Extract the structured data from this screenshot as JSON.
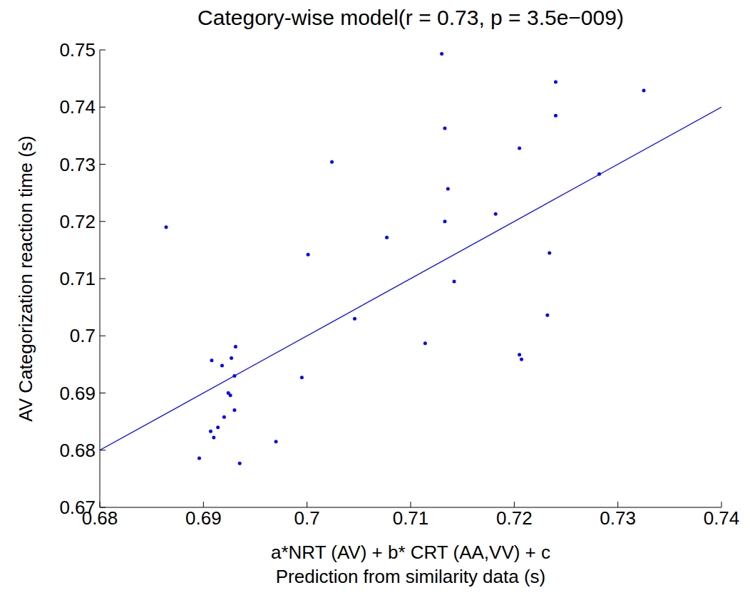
{
  "chart_data": {
    "type": "scatter",
    "title": "Category-wise model(r = 0.73, p = 3.5e−009)",
    "xlabel": [
      "a*NRT (AV) + b* CRT (AA,VV) + c",
      "Prediction from similarity data (s)"
    ],
    "ylabel": "AV Categorization reaction time (s)",
    "xlim": [
      0.68,
      0.74
    ],
    "ylim": [
      0.67,
      0.75
    ],
    "xticks": [
      0.68,
      0.69,
      0.7,
      0.71,
      0.72,
      0.73,
      0.74
    ],
    "yticks": [
      0.67,
      0.68,
      0.69,
      0.7,
      0.71,
      0.72,
      0.73,
      0.74,
      0.75
    ],
    "grid": false,
    "series": [
      {
        "type": "scatter",
        "color": "#0000ff",
        "marker": "dot",
        "x": [
          0.6864,
          0.7024,
          0.7001,
          0.6995,
          0.697,
          0.7325,
          0.7282,
          0.724,
          0.724,
          0.7205,
          0.7234,
          0.7232,
          0.7205,
          0.7207,
          0.713,
          0.7133,
          0.7136,
          0.7133,
          0.7142,
          0.7114,
          0.7077,
          0.7046,
          0.7182,
          0.6931,
          0.6927,
          0.693,
          0.6926,
          0.693,
          0.6924,
          0.692,
          0.6935,
          0.6918,
          0.6914,
          0.6907,
          0.6908,
          0.6896,
          0.691
        ],
        "values": [
          0.719,
          0.7304,
          0.7142,
          0.6927,
          0.6815,
          0.7429,
          0.7283,
          0.7444,
          0.7385,
          0.7328,
          0.7145,
          0.7036,
          0.6967,
          0.6959,
          0.7493,
          0.7363,
          0.7257,
          0.72,
          0.7095,
          0.6987,
          0.7172,
          0.703,
          0.7213,
          0.6981,
          0.6961,
          0.693,
          0.6896,
          0.687,
          0.69,
          0.6858,
          0.6777,
          0.6948,
          0.684,
          0.6833,
          0.6957,
          0.6786,
          0.6822
        ]
      },
      {
        "type": "line",
        "color": "#0000ff",
        "line_style": "solid",
        "x": [
          0.68,
          0.74
        ],
        "values": [
          0.68,
          0.74
        ]
      }
    ]
  }
}
